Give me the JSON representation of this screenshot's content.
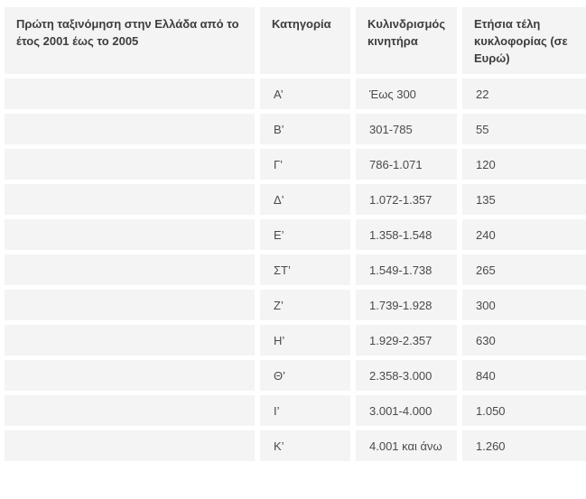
{
  "chart_data": {
    "type": "table",
    "title": "Πρώτη ταξινόμηση στην Ελλάδα από το έτος 2001 έως το 2005",
    "header": {
      "registration_period": "Πρώτη ταξινόμηση στην Ελλάδα από το έτος 2001 έως το 2005",
      "category": "Κατηγορία",
      "displacement": "Κυλινδρισμός κινητήρα",
      "annual_fee": "Ετήσια τέλη κυκλοφορίας (σε Ευρώ)"
    },
    "columns": [
      "Κατηγορία",
      "Κυλινδρισμός κινητήρα",
      "Ετήσια τέλη κυκλοφορίας (σε Ευρώ)"
    ],
    "rows": [
      {
        "category": "Α’",
        "displacement": "Έως 300",
        "annual_fee": "22"
      },
      {
        "category": "Β’",
        "displacement": "301-785",
        "annual_fee": "55"
      },
      {
        "category": "Γ’",
        "displacement": "786-1.071",
        "annual_fee": "120"
      },
      {
        "category": "Δ’",
        "displacement": "1.072-1.357",
        "annual_fee": "135"
      },
      {
        "category": "Ε’",
        "displacement": "1.358-1.548",
        "annual_fee": "240"
      },
      {
        "category": "ΣΤ’",
        "displacement": "1.549-1.738",
        "annual_fee": "265"
      },
      {
        "category": "Ζ’",
        "displacement": "1.739-1.928",
        "annual_fee": "300"
      },
      {
        "category": "Η’",
        "displacement": "1.929-2.357",
        "annual_fee": "630"
      },
      {
        "category": "Θ’",
        "displacement": "2.358-3.000",
        "annual_fee": "840"
      },
      {
        "category": "Ι’",
        "displacement": "3.001-4.000",
        "annual_fee": "1.050"
      },
      {
        "category": "Κ’",
        "displacement": "4.001 και άνω",
        "annual_fee": "1.260"
      }
    ],
    "layout": {
      "grid": "flat gray cells separated by white gutters, no borders",
      "legend_position": "none"
    }
  },
  "colors": {
    "cell_background": "#f4f4f4",
    "gutter": "#ffffff",
    "header_text": "#3d3d3d",
    "body_text": "#4a4a4a"
  }
}
